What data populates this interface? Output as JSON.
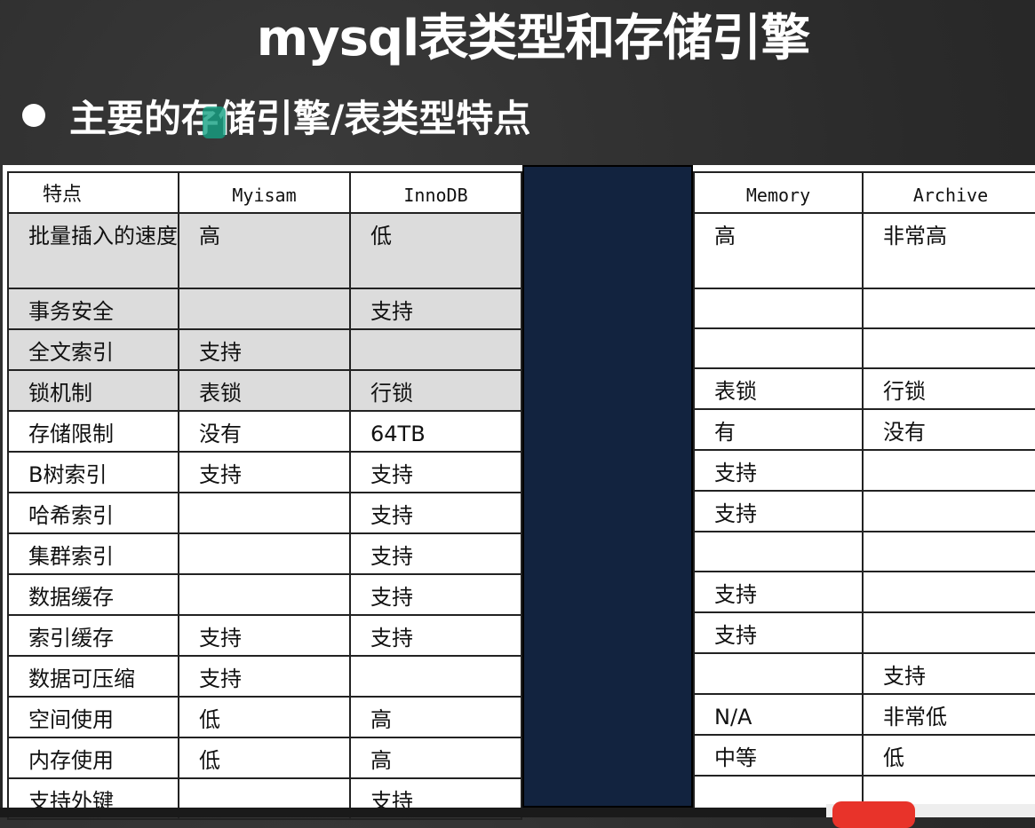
{
  "slide": {
    "title": "mysql表类型和存储引擎",
    "subtitle": "主要的存储引擎/表类型特点"
  },
  "table": {
    "columns": [
      "特点",
      "Myisam",
      "InnoDB",
      "Memory",
      "Archive"
    ],
    "rows": [
      [
        "批量插入的速度",
        "高",
        "低",
        "高",
        "非常高"
      ],
      [
        "事务安全",
        "",
        "支持",
        "",
        ""
      ],
      [
        "全文索引",
        "支持",
        "",
        "",
        ""
      ],
      [
        "锁机制",
        "表锁",
        "行锁",
        "表锁",
        "行锁"
      ],
      [
        "存储限制",
        "没有",
        "64TB",
        "有",
        "没有"
      ],
      [
        "B树索引",
        "支持",
        "支持",
        "支持",
        ""
      ],
      [
        "哈希索引",
        "",
        "支持",
        "支持",
        ""
      ],
      [
        "集群索引",
        "",
        "支持",
        "",
        ""
      ],
      [
        "数据缓存",
        "",
        "支持",
        "支持",
        ""
      ],
      [
        "索引缓存",
        "支持",
        "支持",
        "支持",
        ""
      ],
      [
        "数据可压缩",
        "支持",
        "",
        "",
        "支持"
      ],
      [
        "空间使用",
        "低",
        "高",
        "N/A",
        "非常低"
      ],
      [
        "内存使用",
        "低",
        "高",
        "中等",
        "低"
      ],
      [
        "支持外键",
        "",
        "支持",
        "",
        ""
      ]
    ]
  },
  "colors": {
    "background": "#2e2e2e",
    "highlight_rows": "#dcdcdc",
    "mask": "#12233f",
    "button": "#e8332a"
  }
}
